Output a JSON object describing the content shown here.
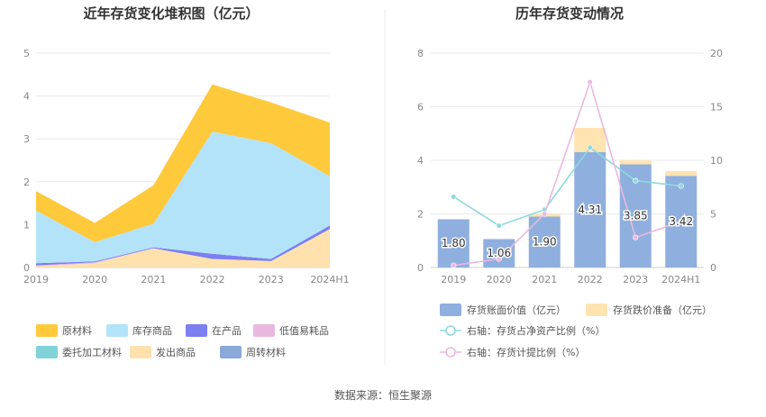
{
  "footer": {
    "source": "数据来源：恒生聚源"
  },
  "chart_data": [
    {
      "type": "area",
      "stacked": true,
      "title": "近年存货变化堆积图（亿元）",
      "categories": [
        "2019",
        "2020",
        "2021",
        "2022",
        "2023",
        "2024H1"
      ],
      "yticks": [
        "0",
        "1",
        "2",
        "3",
        "4",
        "5"
      ],
      "ylim": [
        0,
        5
      ],
      "grid": true,
      "legend_position": "bottom",
      "series": [
        {
          "name": "原材料",
          "color": "#FFC93C",
          "values": [
            0.45,
            0.45,
            0.9,
            1.1,
            0.95,
            1.25
          ]
        },
        {
          "name": "库存商品",
          "color": "#B3E3F8",
          "values": [
            1.23,
            0.45,
            0.55,
            2.85,
            2.7,
            1.15
          ]
        },
        {
          "name": "在产品",
          "color": "#7B7FF0",
          "values": [
            0.05,
            0.02,
            0.02,
            0.12,
            0.05,
            0.08
          ]
        },
        {
          "name": "低值易耗品",
          "color": "#E9B8DF",
          "values": [
            0.02,
            0.02,
            0.0,
            0.0,
            0.0,
            0.0
          ]
        },
        {
          "name": "委托加工材料",
          "color": "#7FD3D8",
          "values": [
            0.0,
            0.0,
            0.0,
            0.0,
            0.0,
            0.0
          ]
        },
        {
          "name": "发出商品",
          "color": "#FFE1AE",
          "values": [
            0.03,
            0.1,
            0.45,
            0.2,
            0.15,
            0.9
          ]
        },
        {
          "name": "周转材料",
          "color": "#8AA8D8",
          "values": [
            0.0,
            0.0,
            0.0,
            0.0,
            0.0,
            0.0
          ]
        }
      ]
    },
    {
      "type": "bar",
      "stacked": true,
      "title": "历年存货变动情况",
      "categories": [
        "2019",
        "2020",
        "2021",
        "2022",
        "2023",
        "2024H1"
      ],
      "y_left": {
        "ylim": [
          0,
          8
        ],
        "ticks": [
          "0",
          "2",
          "4",
          "6",
          "8"
        ]
      },
      "y_right": {
        "ylim": [
          0,
          20
        ],
        "ticks": [
          "0",
          "5",
          "10",
          "15",
          "20"
        ]
      },
      "grid": true,
      "legend_position": "bottom",
      "bar_series": [
        {
          "name": "存货账面价值（亿元）",
          "color": "#8FAFDE",
          "values": [
            1.8,
            1.06,
            1.9,
            4.31,
            3.85,
            3.42
          ],
          "labels": [
            "1.80",
            "1.06",
            "1.90",
            "4.31",
            "3.85",
            "3.42"
          ]
        },
        {
          "name": "存货跌价准备（亿元）",
          "color": "#FFE3B0",
          "values": [
            0.0,
            0.0,
            0.1,
            0.9,
            0.15,
            0.18
          ]
        }
      ],
      "line_series": [
        {
          "name": "右轴：存货占净资产比例（%）",
          "color": "#8ED9DD",
          "axis": "right",
          "values": [
            6.6,
            3.9,
            5.4,
            11.2,
            8.1,
            7.6
          ]
        },
        {
          "name": "右轴：存货计提比例（%）",
          "color": "#EBB8DE",
          "axis": "right",
          "values": [
            0.2,
            0.8,
            5.0,
            17.3,
            2.8,
            4.3
          ]
        }
      ]
    }
  ]
}
